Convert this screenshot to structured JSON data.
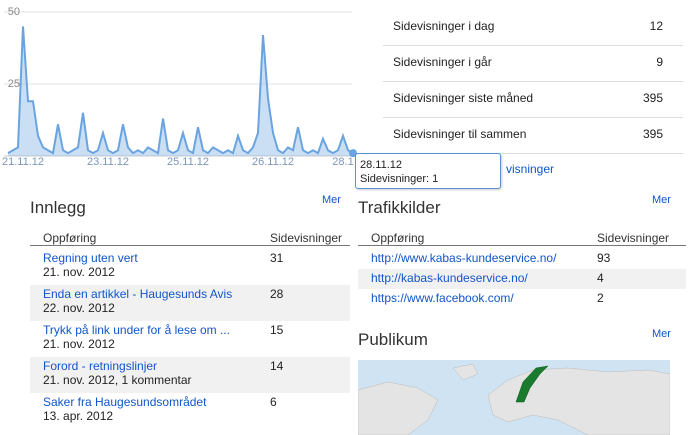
{
  "chart_data": {
    "type": "area",
    "color": "#6aa4e0",
    "categories": [
      null,
      null,
      null,
      "21.11.12",
      null,
      null,
      null,
      null,
      null,
      null,
      null,
      null,
      null,
      null,
      null,
      null,
      null,
      null,
      null,
      null,
      "23.11.12",
      null,
      null,
      null,
      null,
      null,
      null,
      null,
      null,
      null,
      null,
      null,
      null,
      null,
      null,
      null,
      "25.11.12",
      null,
      null,
      null,
      null,
      null,
      null,
      null,
      null,
      null,
      null,
      null,
      null,
      null,
      null,
      null,
      null,
      "26.11.12",
      null,
      null,
      null,
      null,
      null,
      null,
      null,
      null,
      null,
      null,
      null,
      null,
      null,
      "28.1",
      null,
      null
    ],
    "values": [
      1,
      2,
      3,
      45,
      19,
      19,
      7,
      3,
      2,
      1,
      11,
      2,
      1,
      2,
      3,
      15,
      2,
      1,
      2,
      8,
      2,
      1,
      2,
      11,
      3,
      1,
      2,
      1,
      3,
      2,
      1,
      13,
      2,
      1,
      2,
      8,
      2,
      1,
      10,
      2,
      1,
      3,
      2,
      1,
      2,
      1,
      7,
      2,
      1,
      3,
      8,
      42,
      20,
      8,
      2,
      1,
      3,
      2,
      10,
      2,
      1,
      2,
      1,
      6,
      2,
      1,
      2,
      7,
      2,
      1
    ],
    "ylim": [
      0,
      50
    ],
    "yticks": [
      25,
      50
    ],
    "grid": true,
    "tooltip": {
      "title": "28.11.12",
      "text": "Sidevisninger: 1"
    }
  },
  "stats": {
    "rows": [
      [
        "Sidevisninger i dag",
        12
      ],
      [
        "Sidevisninger i går",
        9
      ],
      [
        "Sidevisninger siste måned",
        395
      ],
      [
        "Sidevisninger til sammen",
        395
      ]
    ],
    "link": "visninger"
  },
  "posts": {
    "title": "Innlegg",
    "more": "Mer",
    "headers": [
      "Oppføring",
      "Sidevisninger"
    ],
    "rows": [
      [
        "Regning uten vert",
        "21. nov. 2012",
        31
      ],
      [
        "Enda en artikkel - Haugesunds Avis",
        "22. nov. 2012",
        28
      ],
      [
        "Trykk på link under for å lese om ...",
        "21. nov. 2012",
        15
      ],
      [
        "Forord - retningslinjer",
        "21. nov. 2012, 1 kommentar",
        14
      ],
      [
        "Saker fra Haugesundsområdet",
        "13. apr. 2012",
        6
      ]
    ]
  },
  "traffic": {
    "title": "Trafikkilder",
    "more": "Mer",
    "headers": [
      "Oppføring",
      "Sidevisninger"
    ],
    "rows": [
      [
        "http://www.kabas-kundeservice.no/",
        93
      ],
      [
        "http://kabas-kundeservice.no/",
        4
      ],
      [
        "https://www.facebook.com/",
        2
      ]
    ]
  },
  "audience": {
    "title": "Publikum",
    "more": "Mer"
  }
}
